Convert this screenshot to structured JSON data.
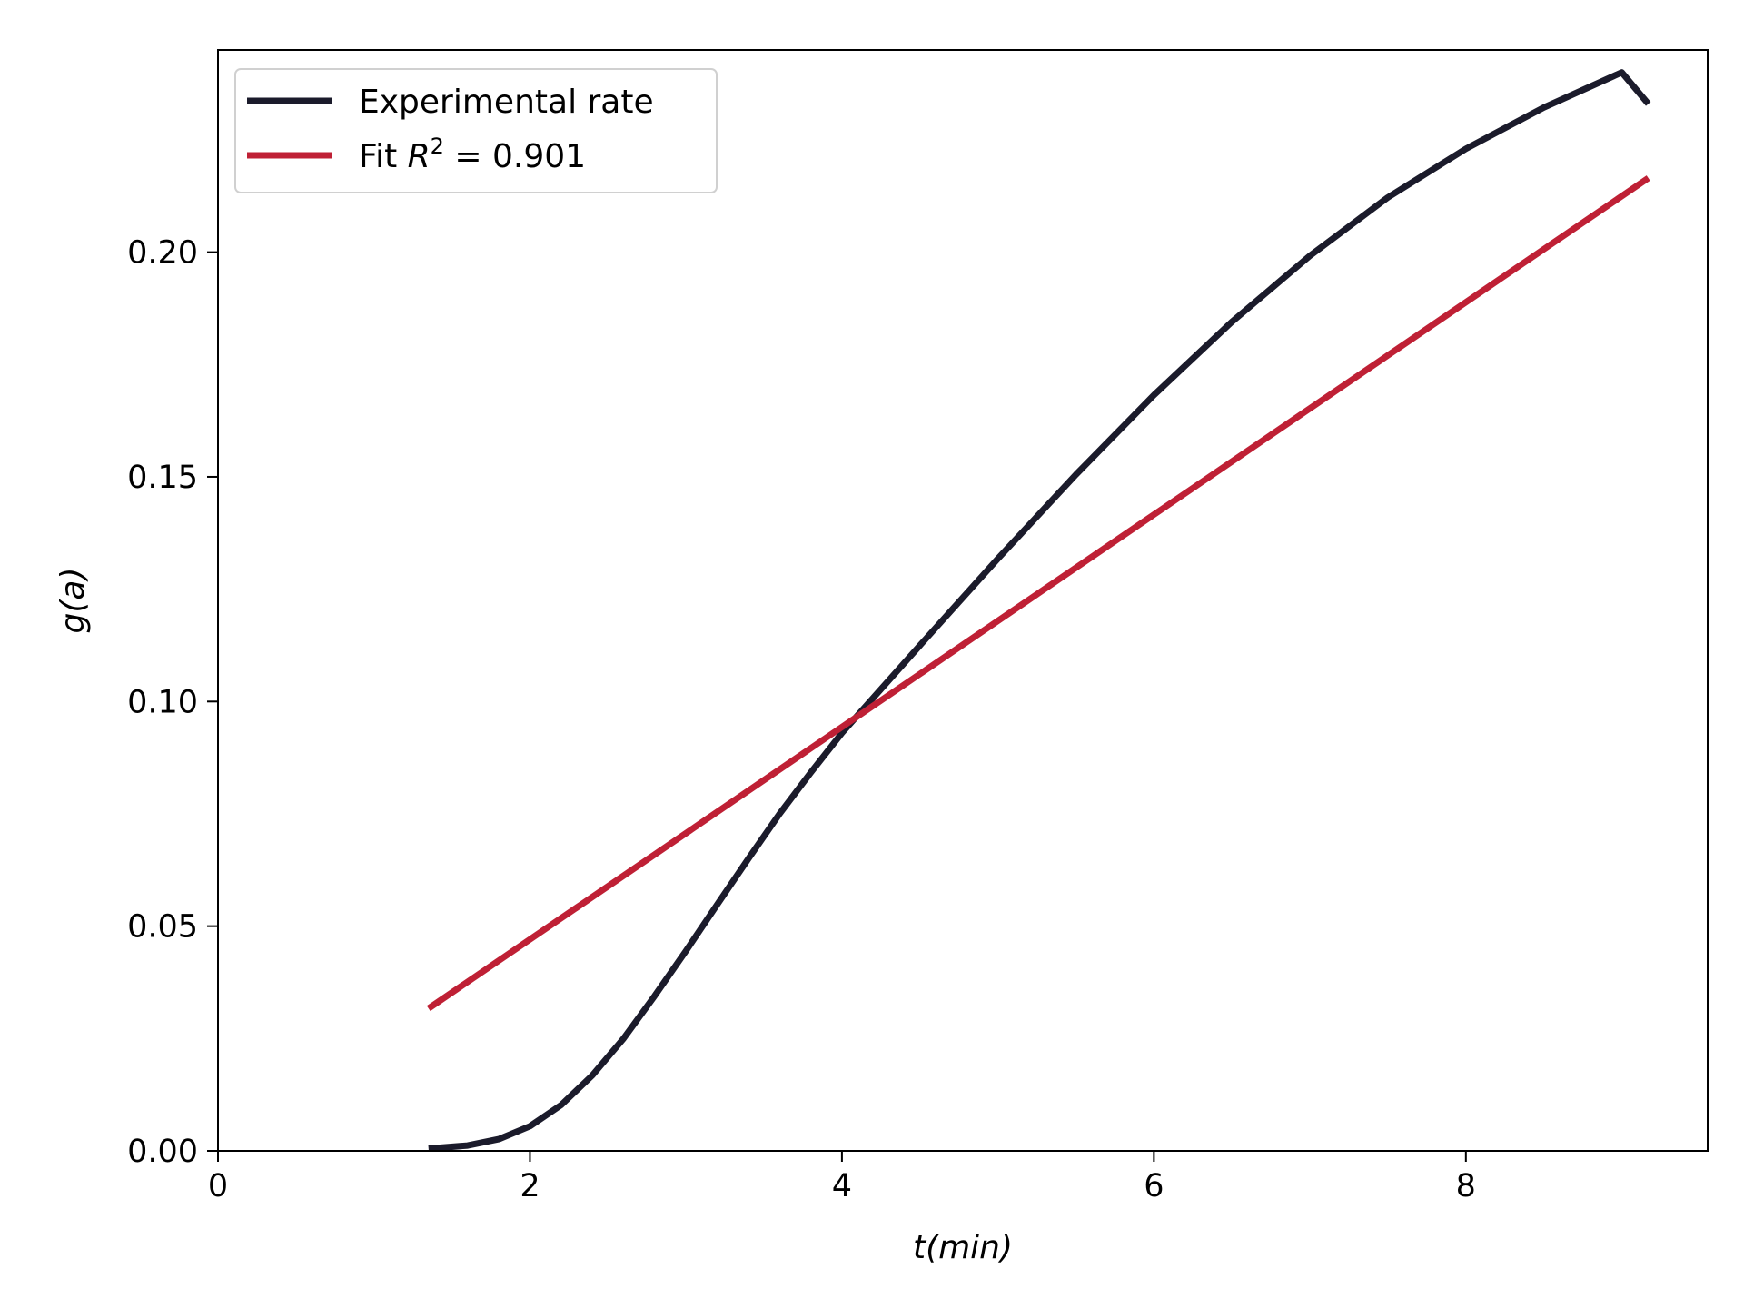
{
  "chart_data": {
    "type": "line",
    "xlabel": "t(min)",
    "ylabel": "g(a)",
    "xlim": [
      0,
      9.55
    ],
    "ylim": [
      0,
      0.245
    ],
    "x_ticks": [
      0,
      2,
      4,
      6,
      8
    ],
    "y_ticks": [
      0.0,
      0.05,
      0.1,
      0.15,
      0.2
    ],
    "x_tick_labels": [
      "0",
      "2",
      "4",
      "6",
      "8"
    ],
    "y_tick_labels": [
      "0.00",
      "0.05",
      "0.10",
      "0.15",
      "0.20"
    ],
    "grid": false,
    "legend_position": "upper-left",
    "series": [
      {
        "name": "Experimental rate",
        "color": "#1b1b2b",
        "x": [
          1.35,
          1.6,
          1.8,
          2.0,
          2.2,
          2.4,
          2.6,
          2.8,
          3.0,
          3.2,
          3.4,
          3.6,
          3.8,
          4.0,
          4.5,
          5.0,
          5.5,
          6.0,
          6.5,
          7.0,
          7.5,
          8.0,
          8.5,
          9.0,
          9.17
        ],
        "y": [
          0.0005,
          0.0012,
          0.0026,
          0.0055,
          0.0102,
          0.0168,
          0.025,
          0.0345,
          0.0445,
          0.0548,
          0.065,
          0.075,
          0.0842,
          0.093,
          0.1125,
          0.1318,
          0.1505,
          0.1682,
          0.1845,
          0.1992,
          0.2122,
          0.223,
          0.2322,
          0.24,
          0.233
        ]
      },
      {
        "name_prefix": "Fit ",
        "name_math_var": "R",
        "name_math_sup": "2",
        "name_suffix": " = 0.901",
        "color": "#bf2035",
        "x": [
          1.35,
          9.17
        ],
        "y": [
          0.0317,
          0.2165
        ]
      }
    ]
  }
}
